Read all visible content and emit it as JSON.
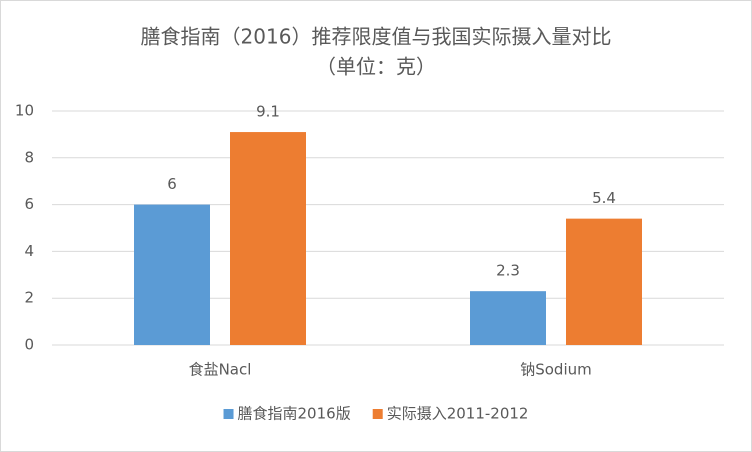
{
  "chart_data": {
    "type": "bar",
    "title": "膳食指南（2016）推荐限度值与我国实际摄入量对比",
    "subtitle": "（单位：克）",
    "categories": [
      "食盐Nacl",
      "钠Sodium"
    ],
    "series": [
      {
        "name": "膳食指南2016版",
        "color": "#5b9bd5",
        "values": [
          6,
          2.3
        ]
      },
      {
        "name": "实际摄入2011-2012",
        "color": "#ed7d31",
        "values": [
          9.1,
          5.4
        ]
      }
    ],
    "ylim": [
      0,
      10
    ],
    "yticks": [
      0,
      2,
      4,
      6,
      8,
      10
    ],
    "grid": true,
    "legend": "bottom"
  }
}
